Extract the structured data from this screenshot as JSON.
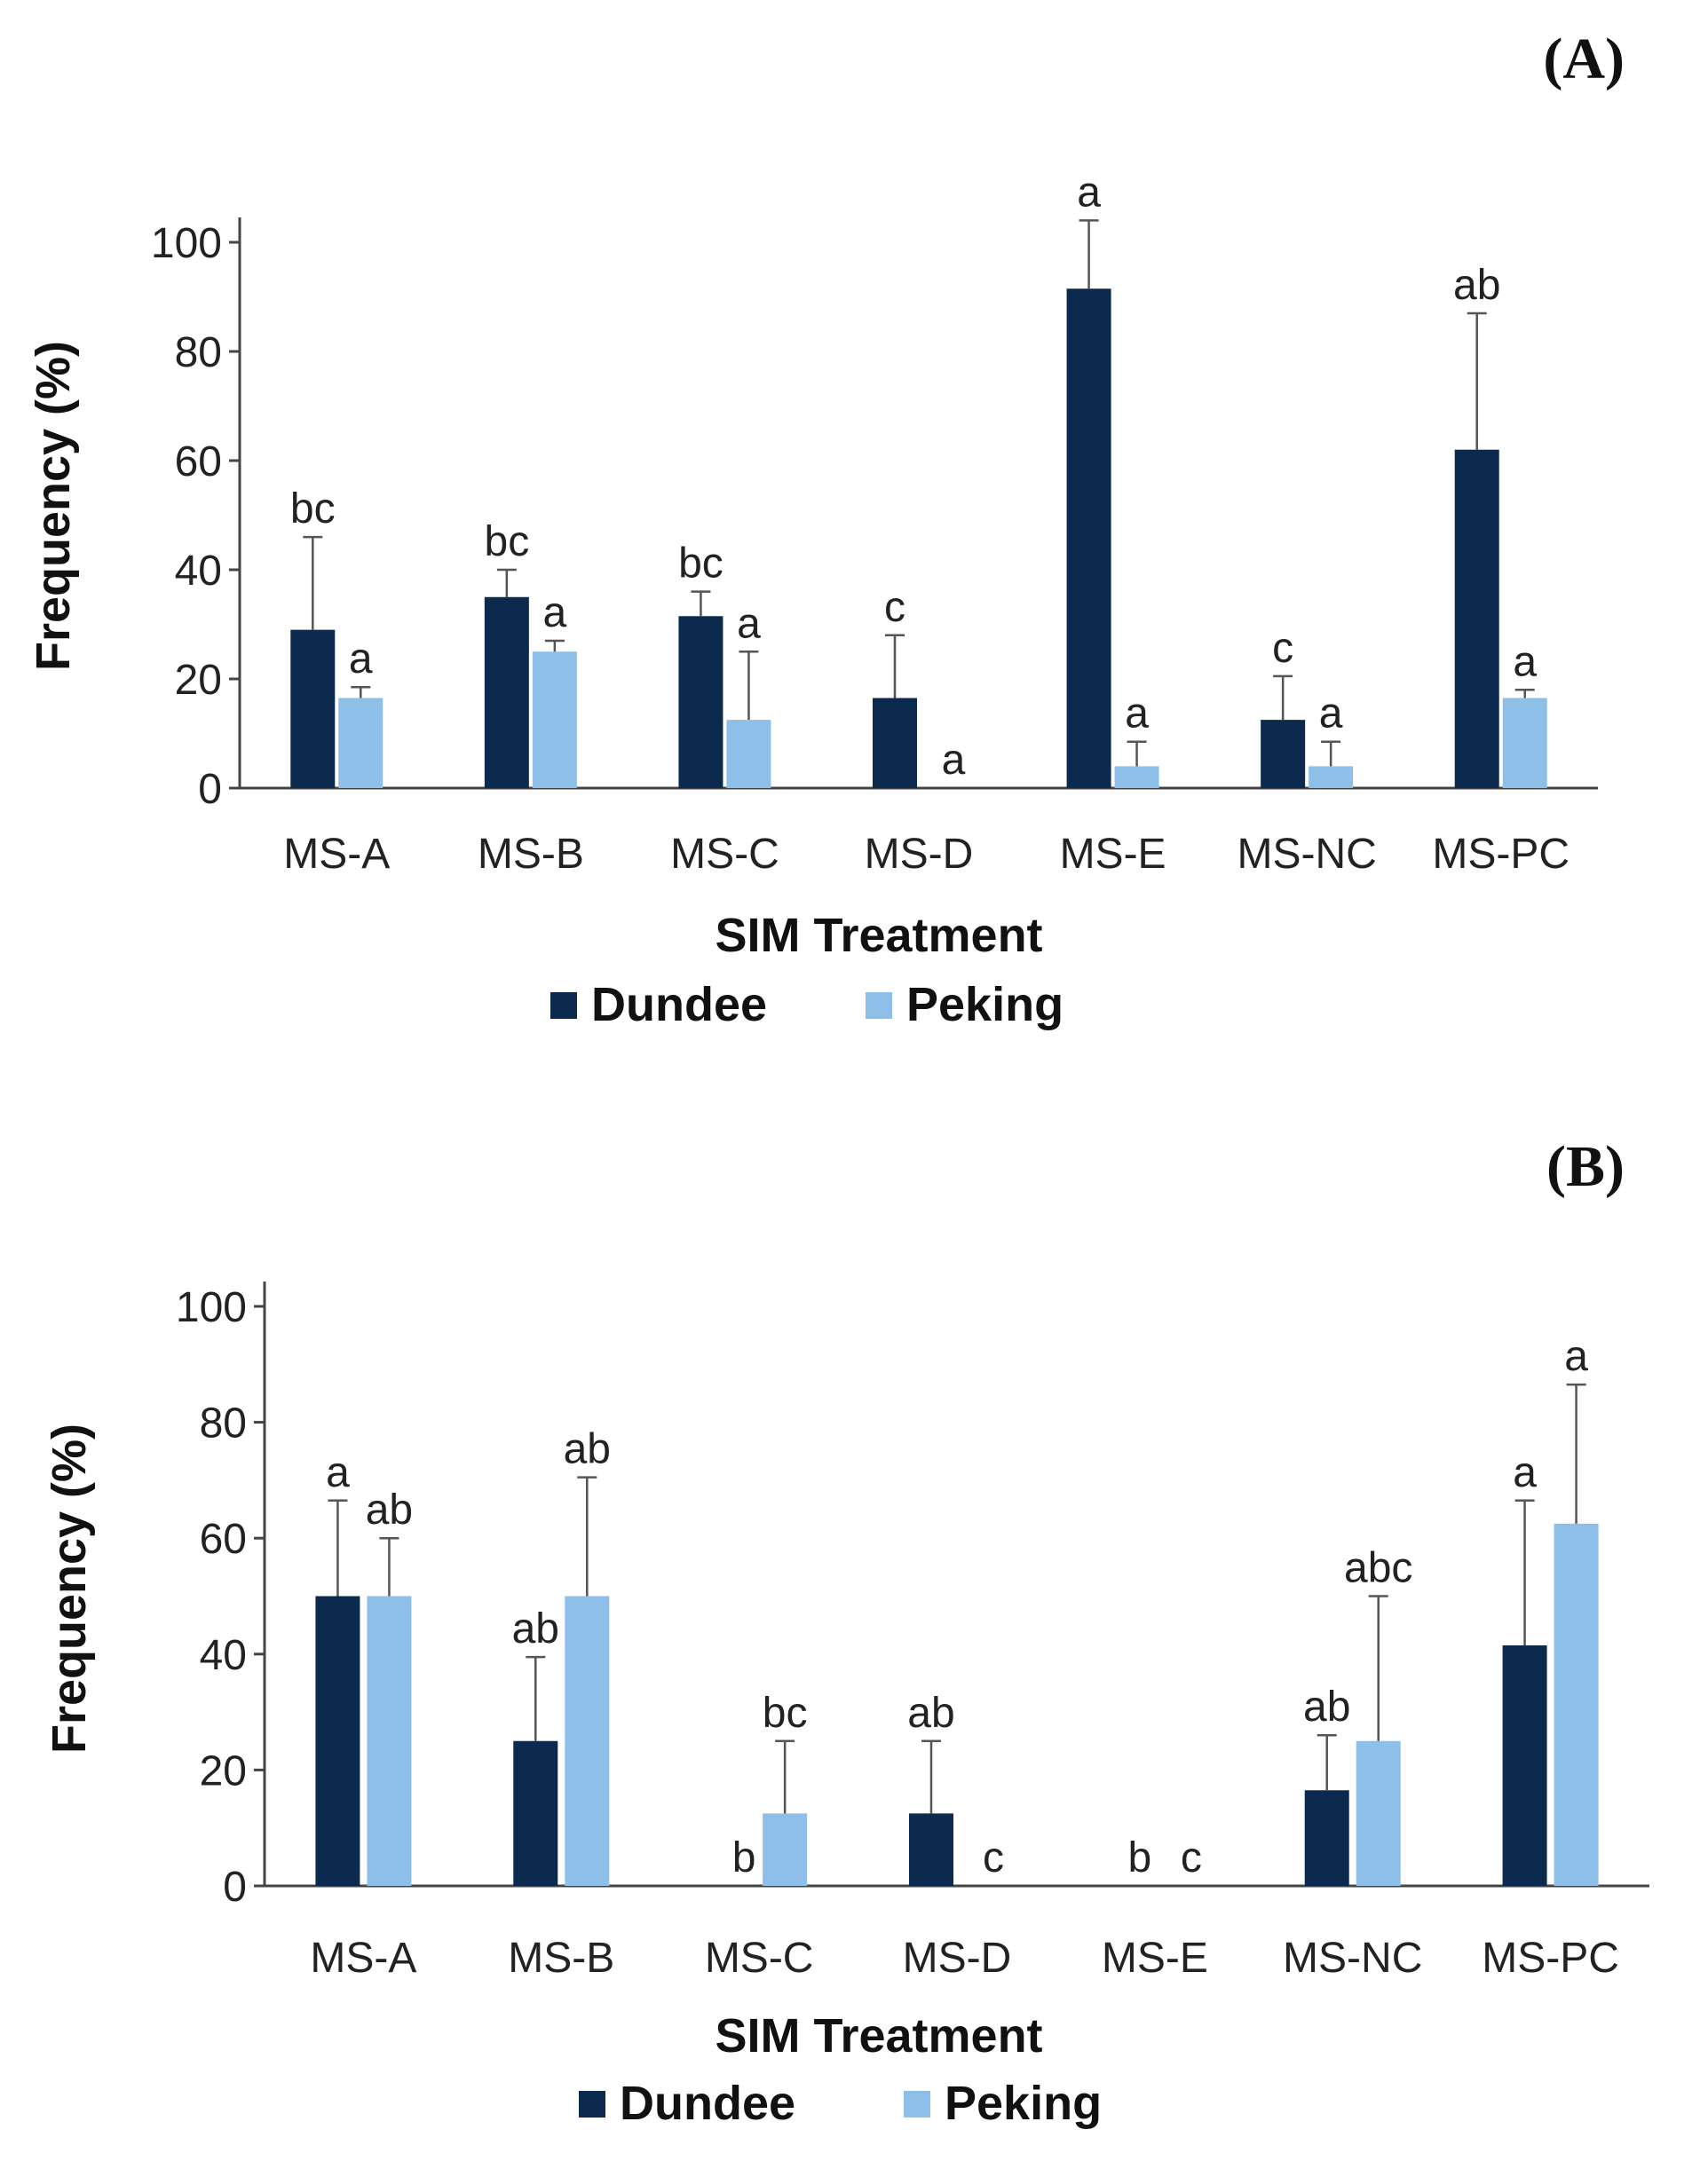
{
  "colors": {
    "dundee": "#0c2a4e",
    "peking": "#8dbfe9"
  },
  "chart_data": [
    {
      "type": "bar",
      "panel": "(A)",
      "categories": [
        "MS-A",
        "MS-B",
        "MS-C",
        "MS-D",
        "MS-E",
        "MS-NC",
        "MS-PC"
      ],
      "series": [
        {
          "name": "Dundee",
          "values": [
            29,
            35,
            31.5,
            16.5,
            91.5,
            12.5,
            62
          ],
          "errors": [
            17,
            5,
            4.5,
            11.5,
            12.5,
            8,
            25
          ],
          "letters": [
            "bc",
            "bc",
            "bc",
            "c",
            "a",
            "c",
            "ab"
          ]
        },
        {
          "name": "Peking",
          "values": [
            16.5,
            25,
            12.5,
            0,
            4,
            4,
            16.5
          ],
          "errors": [
            2,
            2,
            12.5,
            0,
            4.5,
            4.5,
            1.5
          ],
          "letters": [
            "a",
            "a",
            "a",
            "a",
            "a",
            "a",
            "a"
          ]
        }
      ],
      "xlabel": "SIM Treatment",
      "ylabel": "Frequency (%)",
      "ylim": [
        0,
        100
      ],
      "yticks": [
        "0",
        "20",
        "40",
        "60",
        "80",
        "100"
      ]
    },
    {
      "type": "bar",
      "panel": "(B)",
      "categories": [
        "MS-A",
        "MS-B",
        "MS-C",
        "MS-D",
        "MS-E",
        "MS-NC",
        "MS-PC"
      ],
      "series": [
        {
          "name": "Dundee",
          "values": [
            50,
            25,
            0,
            12.5,
            0,
            16.5,
            41.5
          ],
          "errors": [
            16.5,
            14.5,
            0,
            12.5,
            0,
            9.5,
            25
          ],
          "letters": [
            "a",
            "ab",
            "b",
            "ab",
            "b",
            "ab",
            "a"
          ]
        },
        {
          "name": "Peking",
          "values": [
            50,
            50,
            12.5,
            0,
            0,
            25,
            62.5
          ],
          "errors": [
            10,
            20.5,
            12.5,
            0,
            0,
            25,
            24
          ],
          "letters": [
            "ab",
            "ab",
            "bc",
            "c",
            "c",
            "abc",
            "a"
          ]
        }
      ],
      "xlabel": "SIM Treatment",
      "ylabel": "Frequency (%)",
      "ylim": [
        0,
        100
      ],
      "yticks": [
        "0",
        "20",
        "40",
        "60",
        "80",
        "100"
      ]
    }
  ]
}
